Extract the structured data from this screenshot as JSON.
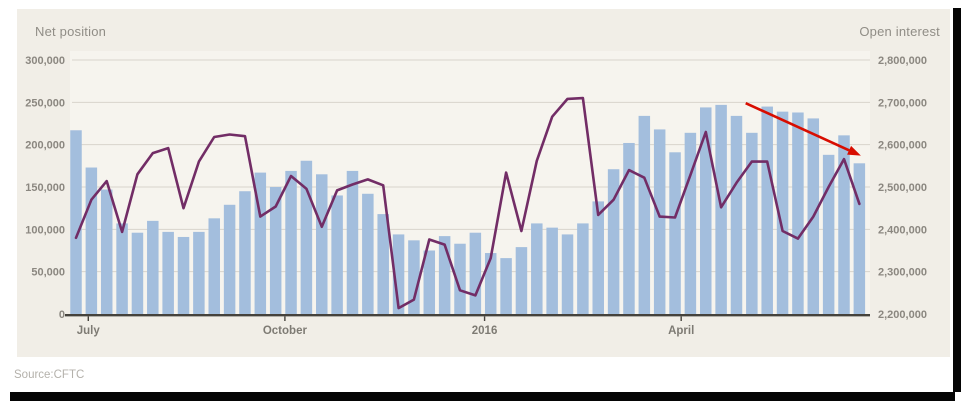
{
  "card": {
    "background": "#f1eee7",
    "plot_background": "#f6f4ee"
  },
  "frame": {
    "shadow_color": "#050505"
  },
  "chart_data": {
    "type": "combo-bar-line",
    "grid": true,
    "legend_position": "axis-titles-top-corners",
    "source": "Source:CFTC",
    "left_axis": {
      "title": "Net position",
      "min": 0,
      "max": 300000,
      "tick_step": 50000,
      "tick_labels": [
        "0",
        "50,000",
        "100,000",
        "150,000",
        "200,000",
        "250,000",
        "300,000"
      ]
    },
    "right_axis": {
      "title": "Open interest",
      "min": 2200000,
      "max": 2800000,
      "tick_step": 100000,
      "tick_labels": [
        "2,200,000",
        "2,300,000",
        "2,400,000",
        "2,500,000",
        "2,600,000",
        "2,700,000",
        "2,800,000"
      ]
    },
    "x_axis": {
      "unit": "weekly observations",
      "tick_labels": [
        {
          "label": "July",
          "position": 0.8
        },
        {
          "label": "October",
          "position": 13.6
        },
        {
          "label": "2016",
          "position": 26.6
        },
        {
          "label": "April",
          "position": 39.4
        }
      ]
    },
    "series": [
      {
        "name": "Net position",
        "type": "bar",
        "axis": "left",
        "color": "#a3bedd",
        "values": [
          217000,
          173000,
          147000,
          107000,
          96000,
          110000,
          97000,
          91000,
          97000,
          113000,
          129000,
          145000,
          167000,
          150000,
          169000,
          181000,
          165000,
          140000,
          169000,
          142000,
          118000,
          94000,
          87000,
          75000,
          92000,
          83000,
          96000,
          72000,
          66000,
          79000,
          107000,
          102000,
          94000,
          107000,
          133000,
          171000,
          202000,
          234000,
          218000,
          191000,
          214000,
          244000,
          247000,
          234000,
          214000,
          245000,
          239000,
          238000,
          231000,
          188000,
          211000,
          178000
        ]
      },
      {
        "name": "Open interest",
        "type": "line",
        "axis": "right",
        "color": "#722d66",
        "values": [
          2380000,
          2470000,
          2514000,
          2394000,
          2530000,
          2580000,
          2592000,
          2450000,
          2560000,
          2618000,
          2624000,
          2620000,
          2430000,
          2454000,
          2526000,
          2496000,
          2406000,
          2492000,
          2506000,
          2518000,
          2504000,
          2214000,
          2234000,
          2376000,
          2364000,
          2256000,
          2244000,
          2332000,
          2534000,
          2396000,
          2562000,
          2666000,
          2708000,
          2710000,
          2434000,
          2470000,
          2540000,
          2522000,
          2430000,
          2428000,
          2528000,
          2630000,
          2452000,
          2510000,
          2560000,
          2560000,
          2396000,
          2378000,
          2430000,
          2500000,
          2566000,
          2460000
        ]
      }
    ],
    "annotation": {
      "type": "arrow",
      "meaning": "downtrend in open interest",
      "color": "#d80d00",
      "from": {
        "index": 43.6,
        "value": 2698000
      },
      "to": {
        "index": 51.1,
        "value": 2574000
      }
    },
    "style": {
      "grid_color": "#d8d5cc",
      "axis_line_color": "#45423c",
      "tick_label_color": "#8b8780",
      "x_label_color": "#7e7b74"
    }
  }
}
